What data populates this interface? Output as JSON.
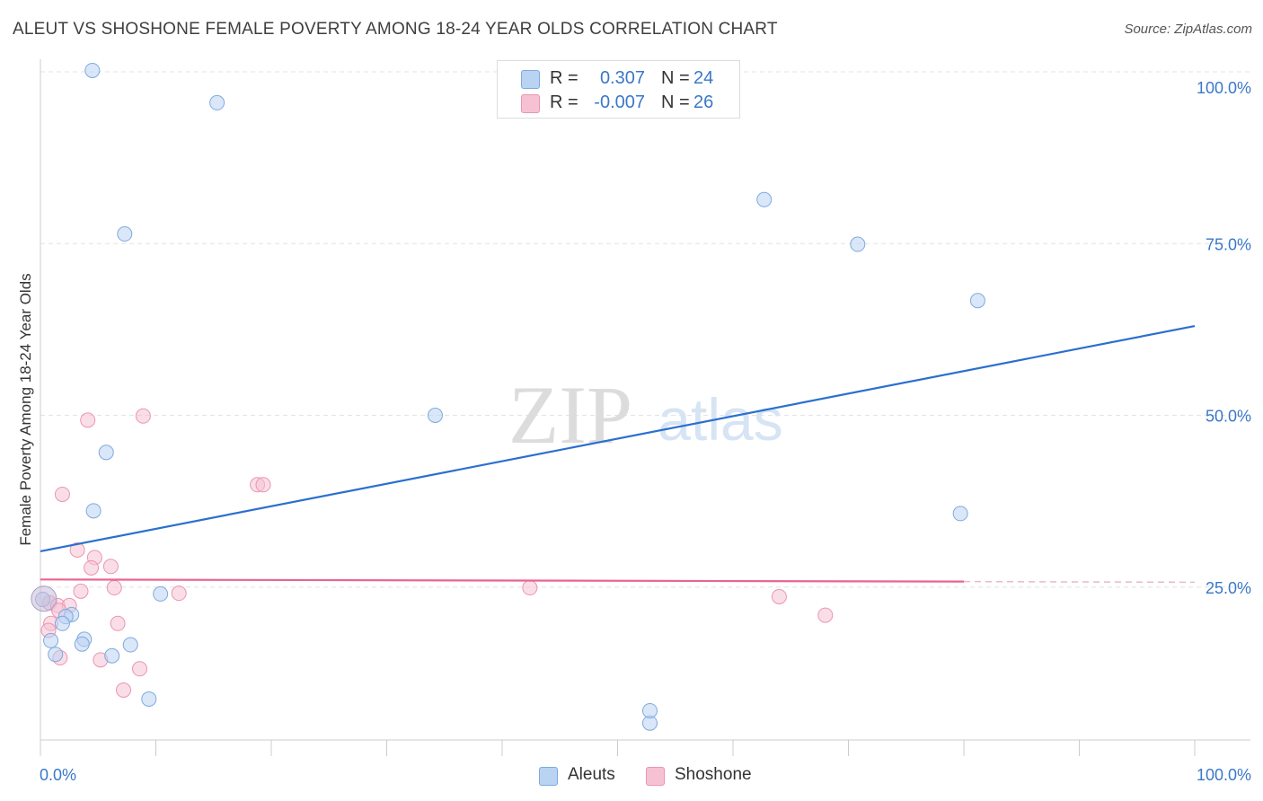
{
  "title": "ALEUT VS SHOSHONE FEMALE POVERTY AMONG 18-24 YEAR OLDS CORRELATION CHART",
  "source": "Source: ZipAtlas.com",
  "watermark": {
    "zip": "ZIP",
    "atlas": "atlas"
  },
  "legend": {
    "rows": [
      {
        "r_label": "R =",
        "r_value": "0.307",
        "n_label": "N =",
        "n_value": "24"
      },
      {
        "r_label": "R =",
        "r_value": "-0.007",
        "n_label": "N =",
        "n_value": "26"
      }
    ]
  },
  "bottom_legend": {
    "aleuts": "Aleuts",
    "shoshone": "Shoshone"
  },
  "colors": {
    "aleut_fill": "#b9d3f3",
    "aleut_stroke": "#7fa9df",
    "aleut_line": "#2b6fcf",
    "shoshone_fill": "#f6c2d3",
    "shoshone_stroke": "#ec94b1",
    "shoshone_line": "#e9658e",
    "tick_label": "#3a78c9",
    "grid": "#e3e3e3"
  },
  "chart_data": {
    "type": "scatter",
    "title": "ALEUT VS SHOSHONE FEMALE POVERTY AMONG 18-24 YEAR OLDS CORRELATION CHART",
    "xlabel": "",
    "ylabel": "Female Poverty Among 18-24 Year Olds",
    "xlim": [
      0,
      100
    ],
    "ylim": [
      0,
      102
    ],
    "x_tick_labels": [
      "0.0%",
      "100.0%"
    ],
    "y_ticks": [
      25,
      50,
      75,
      100
    ],
    "y_tick_labels": [
      "25.0%",
      "50.0%",
      "75.0%",
      "100.0%"
    ],
    "grid": "horizontal dashed",
    "legend_placement": "top-center",
    "series": [
      {
        "name": "Aleuts",
        "points": [
          [
            4.5,
            100.2
          ],
          [
            15.3,
            95.5
          ],
          [
            7.3,
            76.4
          ],
          [
            62.7,
            81.4
          ],
          [
            70.8,
            74.9
          ],
          [
            81.2,
            66.7
          ],
          [
            34.2,
            50.0
          ],
          [
            5.7,
            44.6
          ],
          [
            4.6,
            36.1
          ],
          [
            79.7,
            35.7
          ],
          [
            10.4,
            24.0
          ],
          [
            0.2,
            23.2
          ],
          [
            2.7,
            21.0
          ],
          [
            2.2,
            20.7
          ],
          [
            1.9,
            19.7
          ],
          [
            0.9,
            17.2
          ],
          [
            3.8,
            17.4
          ],
          [
            7.8,
            16.6
          ],
          [
            3.6,
            16.7
          ],
          [
            1.3,
            15.2
          ],
          [
            6.2,
            15.0
          ],
          [
            9.4,
            8.7
          ],
          [
            52.8,
            5.2
          ],
          [
            52.8,
            7.0
          ]
        ],
        "trend": {
          "x": [
            0,
            100
          ],
          "y": [
            30.2,
            63.0
          ]
        }
      },
      {
        "name": "Shoshone",
        "points": [
          [
            4.1,
            49.3
          ],
          [
            8.9,
            49.9
          ],
          [
            1.9,
            38.5
          ],
          [
            18.8,
            39.9
          ],
          [
            19.3,
            39.9
          ],
          [
            3.2,
            30.4
          ],
          [
            4.7,
            29.3
          ],
          [
            4.4,
            27.8
          ],
          [
            6.1,
            28.0
          ],
          [
            6.4,
            24.9
          ],
          [
            3.5,
            24.4
          ],
          [
            12.0,
            24.1
          ],
          [
            42.4,
            24.9
          ],
          [
            64.0,
            23.6
          ],
          [
            0.8,
            22.7
          ],
          [
            1.5,
            22.3
          ],
          [
            2.5,
            22.3
          ],
          [
            1.6,
            21.6
          ],
          [
            68.0,
            20.9
          ],
          [
            0.9,
            19.7
          ],
          [
            6.7,
            19.7
          ],
          [
            0.7,
            18.7
          ],
          [
            1.7,
            14.7
          ],
          [
            5.2,
            14.4
          ],
          [
            8.6,
            13.1
          ],
          [
            7.2,
            10.0
          ]
        ],
        "trend": {
          "x": [
            0,
            80
          ],
          "y": [
            26.1,
            25.8
          ]
        },
        "trend_dashed": {
          "x": [
            80,
            100
          ],
          "y": [
            25.8,
            25.7
          ]
        }
      }
    ]
  }
}
